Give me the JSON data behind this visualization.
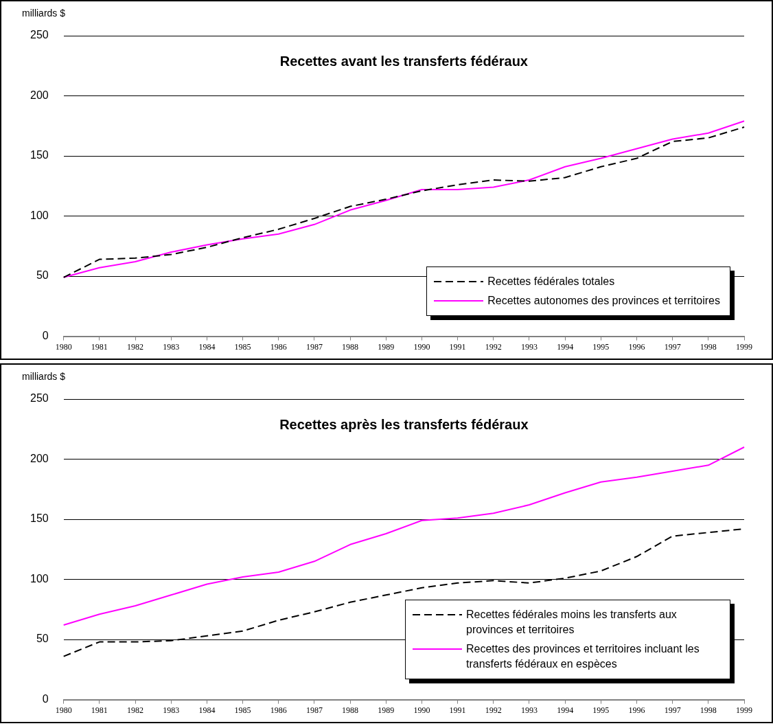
{
  "chart_data": [
    {
      "type": "line",
      "title": "Recettes avant les transferts fédéraux",
      "ylabel": "milliards $",
      "categories": [
        "1980",
        "1981",
        "1982",
        "1983",
        "1984",
        "1985",
        "1986",
        "1987",
        "1988",
        "1989",
        "1990",
        "1991",
        "1992",
        "1993",
        "1994",
        "1995",
        "1996",
        "1997",
        "1998",
        "1999"
      ],
      "series": [
        {
          "name": "Recettes fédérales totales",
          "color": "#000000",
          "line_style": "dashed",
          "values": [
            49,
            64,
            65,
            68,
            74,
            82,
            89,
            98,
            108,
            114,
            121,
            126,
            130,
            129,
            132,
            141,
            148,
            162,
            165,
            174
          ]
        },
        {
          "name": "Recettes autonomes des provinces et territoires",
          "color": "#ff00ff",
          "line_style": "solid",
          "values": [
            49,
            57,
            62,
            70,
            76,
            81,
            85,
            93,
            105,
            113,
            122,
            122,
            124,
            130,
            141,
            148,
            156,
            164,
            169,
            179
          ]
        }
      ],
      "ylim": [
        0,
        250
      ],
      "yticks": [
        0,
        50,
        100,
        150,
        200,
        250
      ],
      "grid": "y",
      "legend": "bottom right"
    },
    {
      "type": "line",
      "title": "Recettes après les transferts fédéraux",
      "ylabel": "milliards $",
      "categories": [
        "1980",
        "1981",
        "1982",
        "1983",
        "1984",
        "1985",
        "1986",
        "1987",
        "1988",
        "1989",
        "1990",
        "1991",
        "1992",
        "1993",
        "1994",
        "1995",
        "1996",
        "1997",
        "1998",
        "1999"
      ],
      "series": [
        {
          "name": "Recettes fédérales moins les transferts aux provinces et territoires",
          "color": "#000000",
          "line_style": "dashed",
          "values": [
            36,
            48,
            48,
            49,
            53,
            57,
            66,
            73,
            81,
            87,
            93,
            97,
            99,
            97,
            101,
            107,
            119,
            136,
            139,
            142
          ]
        },
        {
          "name": "Recettes des provinces et territoires incluant les transferts fédéraux en espèces",
          "color": "#ff00ff",
          "line_style": "solid",
          "values": [
            62,
            71,
            78,
            87,
            96,
            102,
            106,
            115,
            129,
            138,
            149,
            151,
            155,
            162,
            172,
            181,
            185,
            190,
            195,
            210
          ]
        }
      ],
      "ylim": [
        0,
        250
      ],
      "yticks": [
        0,
        50,
        100,
        150,
        200,
        250
      ],
      "grid": "y",
      "legend": "bottom right"
    }
  ]
}
